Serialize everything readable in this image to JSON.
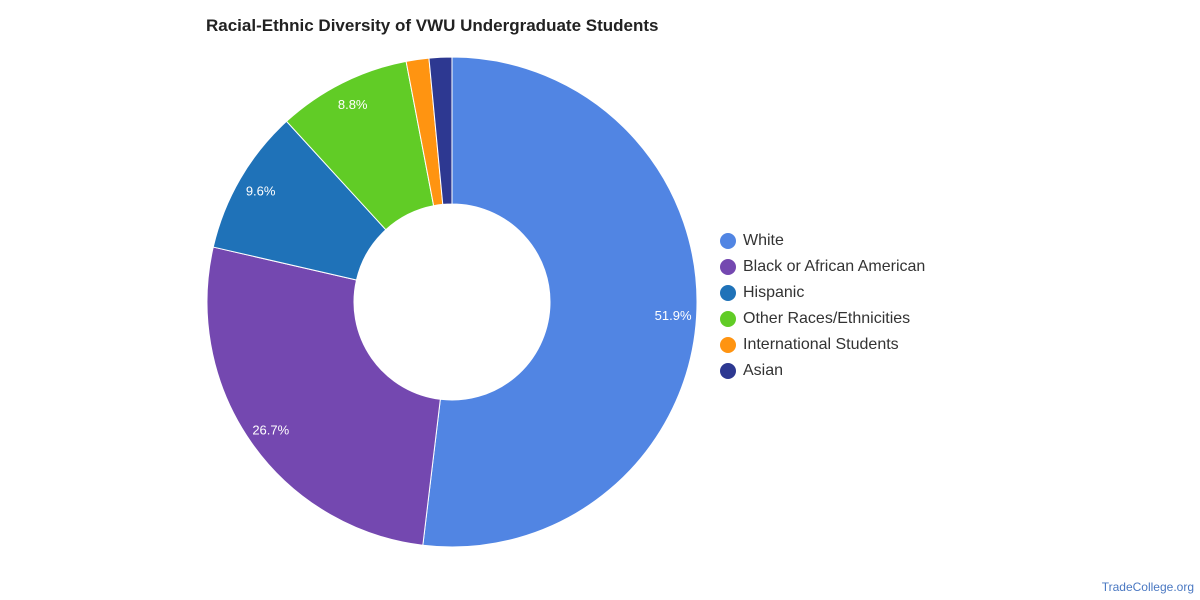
{
  "chart_data": {
    "type": "pie",
    "title": "Racial-Ethnic Diversity of VWU Undergraduate Students",
    "categories": [
      "White",
      "Black or African American",
      "Hispanic",
      "Other Races/Ethnicities",
      "International Students",
      "Asian"
    ],
    "values": [
      51.9,
      26.7,
      9.6,
      8.8,
      1.5,
      1.5
    ],
    "data_labels": [
      "51.9%",
      "26.7%",
      "9.6%",
      "8.8%",
      "",
      ""
    ],
    "colors": [
      "#5185e3",
      "#7448b0",
      "#1f72b8",
      "#61cc26",
      "#ff9411",
      "#2d3891"
    ],
    "legend_position": "right"
  },
  "source": "TradeCollege.org"
}
